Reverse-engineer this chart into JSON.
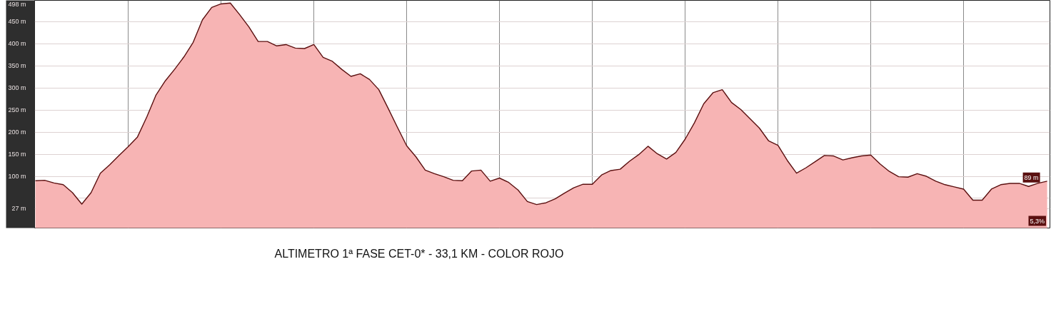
{
  "chart_data": {
    "type": "area",
    "title": "ALTIMETRO 1ª FASE CET-0* - 33,1 KM - COLOR ROJO",
    "categories": [
      null,
      null,
      null,
      null,
      null,
      null,
      null,
      null,
      null,
      null,
      null,
      null,
      null,
      null,
      null,
      null,
      null,
      null,
      null,
      null,
      null,
      null,
      null,
      null,
      null,
      null,
      null,
      null,
      null,
      null,
      null,
      null,
      null,
      null,
      null,
      null,
      null,
      null,
      null,
      null,
      null,
      null,
      null,
      null,
      null,
      null,
      null,
      null,
      null,
      null,
      null,
      null,
      null,
      null,
      null,
      null,
      null,
      null,
      null,
      null,
      null,
      null,
      null,
      null,
      null,
      null,
      null,
      null,
      null,
      null,
      null,
      null,
      null,
      null,
      null,
      null,
      null,
      null,
      null,
      null,
      null,
      null,
      null,
      null,
      null,
      null,
      null,
      null,
      null,
      null,
      null,
      null,
      null,
      null,
      null,
      null,
      null,
      null,
      null,
      null,
      null,
      null,
      null,
      null,
      null,
      null,
      null,
      null,
      null,
      null
    ],
    "series": [
      {
        "color": "#f7b4b4",
        "values": [
          90,
          91,
          85,
          81,
          63,
          37,
          63,
          107,
          126,
          147,
          167,
          189,
          234,
          284,
          316,
          342,
          370,
          403,
          454,
          482,
          490,
          492,
          466,
          438,
          405,
          405,
          395,
          398,
          390,
          389,
          398,
          369,
          360,
          342,
          326,
          332,
          319,
          296,
          254,
          211,
          169,
          144,
          114,
          106,
          99,
          91,
          90,
          112,
          114,
          89,
          96,
          86,
          69,
          43,
          36,
          40,
          49,
          62,
          74,
          82,
          82,
          103,
          113,
          116,
          134,
          149,
          168,
          151,
          139,
          154,
          184,
          221,
          264,
          289,
          296,
          267,
          251,
          230,
          209,
          180,
          170,
          136,
          107,
          119,
          133,
          147,
          146,
          137,
          142,
          146,
          148,
          128,
          111,
          99,
          98,
          106,
          100,
          89,
          81,
          76,
          71,
          46,
          46,
          71,
          81,
          84,
          84,
          77,
          84,
          89
        ]
      }
    ],
    "ylim": [
      -17,
      498
    ],
    "yticks": [
      {
        "value": 27,
        "label": "27 m"
      },
      {
        "value": 50,
        "label": null
      },
      {
        "value": 100,
        "label": "100 m"
      },
      {
        "value": 150,
        "label": "150 m"
      },
      {
        "value": 200,
        "label": "200 m"
      },
      {
        "value": 250,
        "label": "250 m"
      },
      {
        "value": 300,
        "label": "300 m"
      },
      {
        "value": 350,
        "label": "350 m"
      },
      {
        "value": 400,
        "label": "400 m"
      },
      {
        "value": 450,
        "label": "450 m"
      },
      {
        "value": 498,
        "label": "498 m"
      }
    ],
    "tick_labels": "y",
    "grid": true,
    "annotations": [
      {
        "text": "89 m",
        "y": 89
      },
      "5,3%"
    ]
  }
}
